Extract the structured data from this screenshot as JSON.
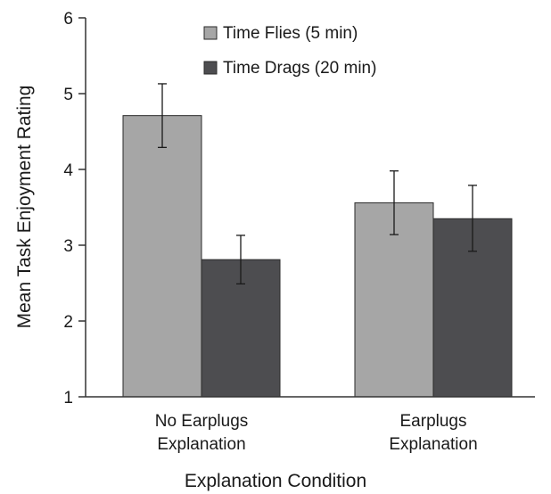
{
  "chart_data": {
    "type": "bar",
    "title": "",
    "xlabel": "Explanation Condition",
    "ylabel": "Mean Task Enjoyment Rating",
    "ylim": [
      1,
      6
    ],
    "yticks": [
      1,
      2,
      3,
      4,
      5,
      6
    ],
    "grid": false,
    "legend_position": "top",
    "categories": [
      [
        "No Earplugs",
        "Explanation"
      ],
      [
        "Earplugs",
        "Explanation"
      ]
    ],
    "series": [
      {
        "name": "Time Flies (5 min)",
        "color": "#a6a6a6",
        "values": [
          4.71,
          3.56
        ],
        "error_low": [
          4.29,
          3.14
        ],
        "error_high": [
          5.13,
          3.98
        ]
      },
      {
        "name": "Time Drags (20 min)",
        "color": "#4d4d50",
        "values": [
          2.81,
          3.35
        ],
        "error_low": [
          2.49,
          2.92
        ],
        "error_high": [
          3.13,
          3.79
        ]
      }
    ]
  }
}
